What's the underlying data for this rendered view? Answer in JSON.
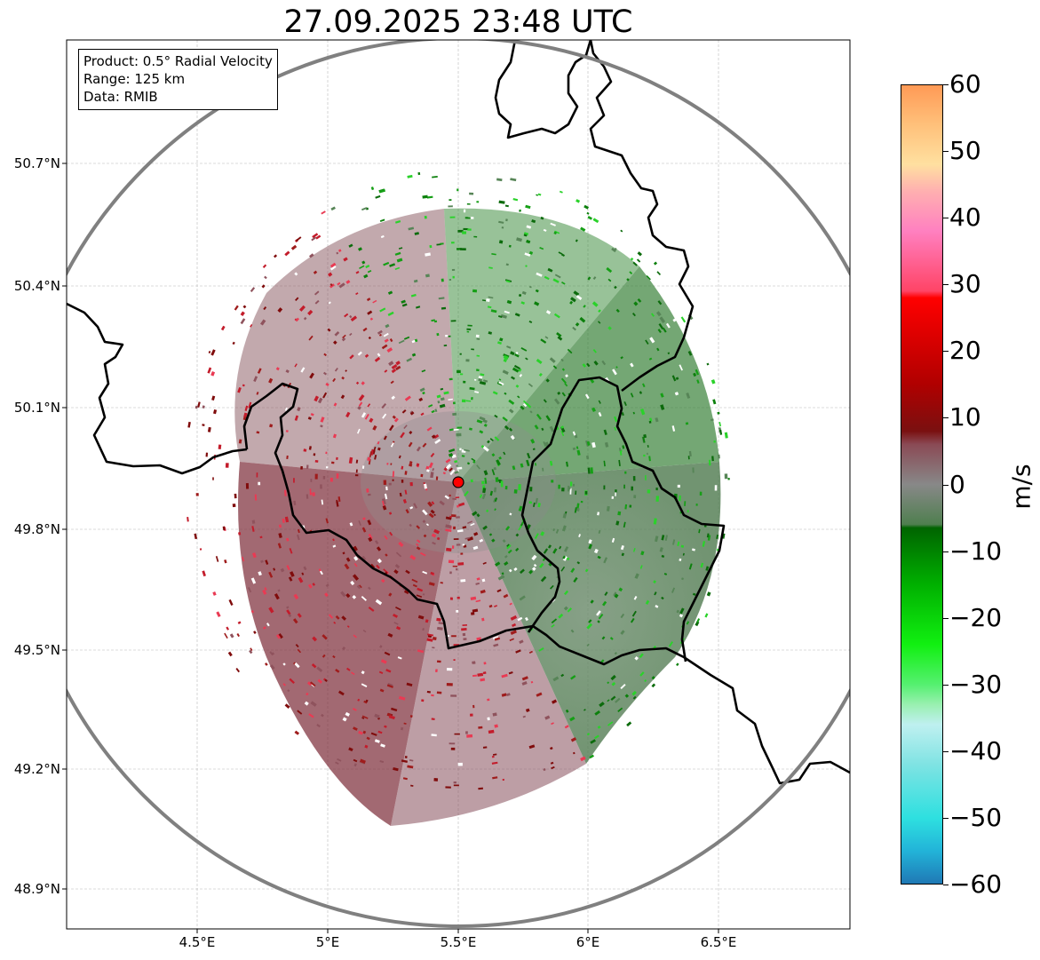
{
  "title": "27.09.2025 23:48 UTC",
  "info_box": {
    "product": "Product: 0.5° Radial Velocity",
    "range": "Range: 125 km",
    "data": "Data: RMIB"
  },
  "lat_labels": [
    "50.7°N",
    "50.4°N",
    "50.1°N",
    "49.8°N",
    "49.5°N",
    "49.2°N",
    "48.9°N"
  ],
  "lon_labels": [
    "4.5°E",
    "5°E",
    "5.5°E",
    "6°E",
    "6.5°E"
  ],
  "colorbar": {
    "label": "m/s",
    "min": -60,
    "max": 60,
    "ticks": [
      "60",
      "50",
      "40",
      "30",
      "20",
      "10",
      "0",
      "−10",
      "−20",
      "−30",
      "−40",
      "−50",
      "−60"
    ],
    "stops": [
      {
        "v": -60,
        "c": "#1f77b4"
      },
      {
        "v": -55,
        "c": "#22b3d8"
      },
      {
        "v": -50,
        "c": "#2ee0e0"
      },
      {
        "v": -42,
        "c": "#7fe3e3"
      },
      {
        "v": -36,
        "c": "#bff0f0"
      },
      {
        "v": -33,
        "c": "#99f0b0"
      },
      {
        "v": -30,
        "c": "#55f070"
      },
      {
        "v": -24,
        "c": "#11f011"
      },
      {
        "v": -15,
        "c": "#00b000"
      },
      {
        "v": -6.5,
        "c": "#006400"
      },
      {
        "v": -6,
        "c": "#4f7f4f"
      },
      {
        "v": 0,
        "c": "#888888"
      },
      {
        "v": 6,
        "c": "#8a4a55"
      },
      {
        "v": 8,
        "c": "#7a1010"
      },
      {
        "v": 15,
        "c": "#b00000"
      },
      {
        "v": 28,
        "c": "#ff0000"
      },
      {
        "v": 29,
        "c": "#ff4466"
      },
      {
        "v": 38,
        "c": "#ff80c0"
      },
      {
        "v": 44,
        "c": "#ffb0b0"
      },
      {
        "v": 48,
        "c": "#ffe0a0"
      },
      {
        "v": 54,
        "c": "#ffc07a"
      },
      {
        "v": 60,
        "c": "#ff9955"
      }
    ]
  },
  "radar": {
    "lat": 49.914,
    "lon": 5.505
  },
  "colors": {
    "approach": "#006400",
    "recede": "#7a0000",
    "zero": "#888888"
  }
}
